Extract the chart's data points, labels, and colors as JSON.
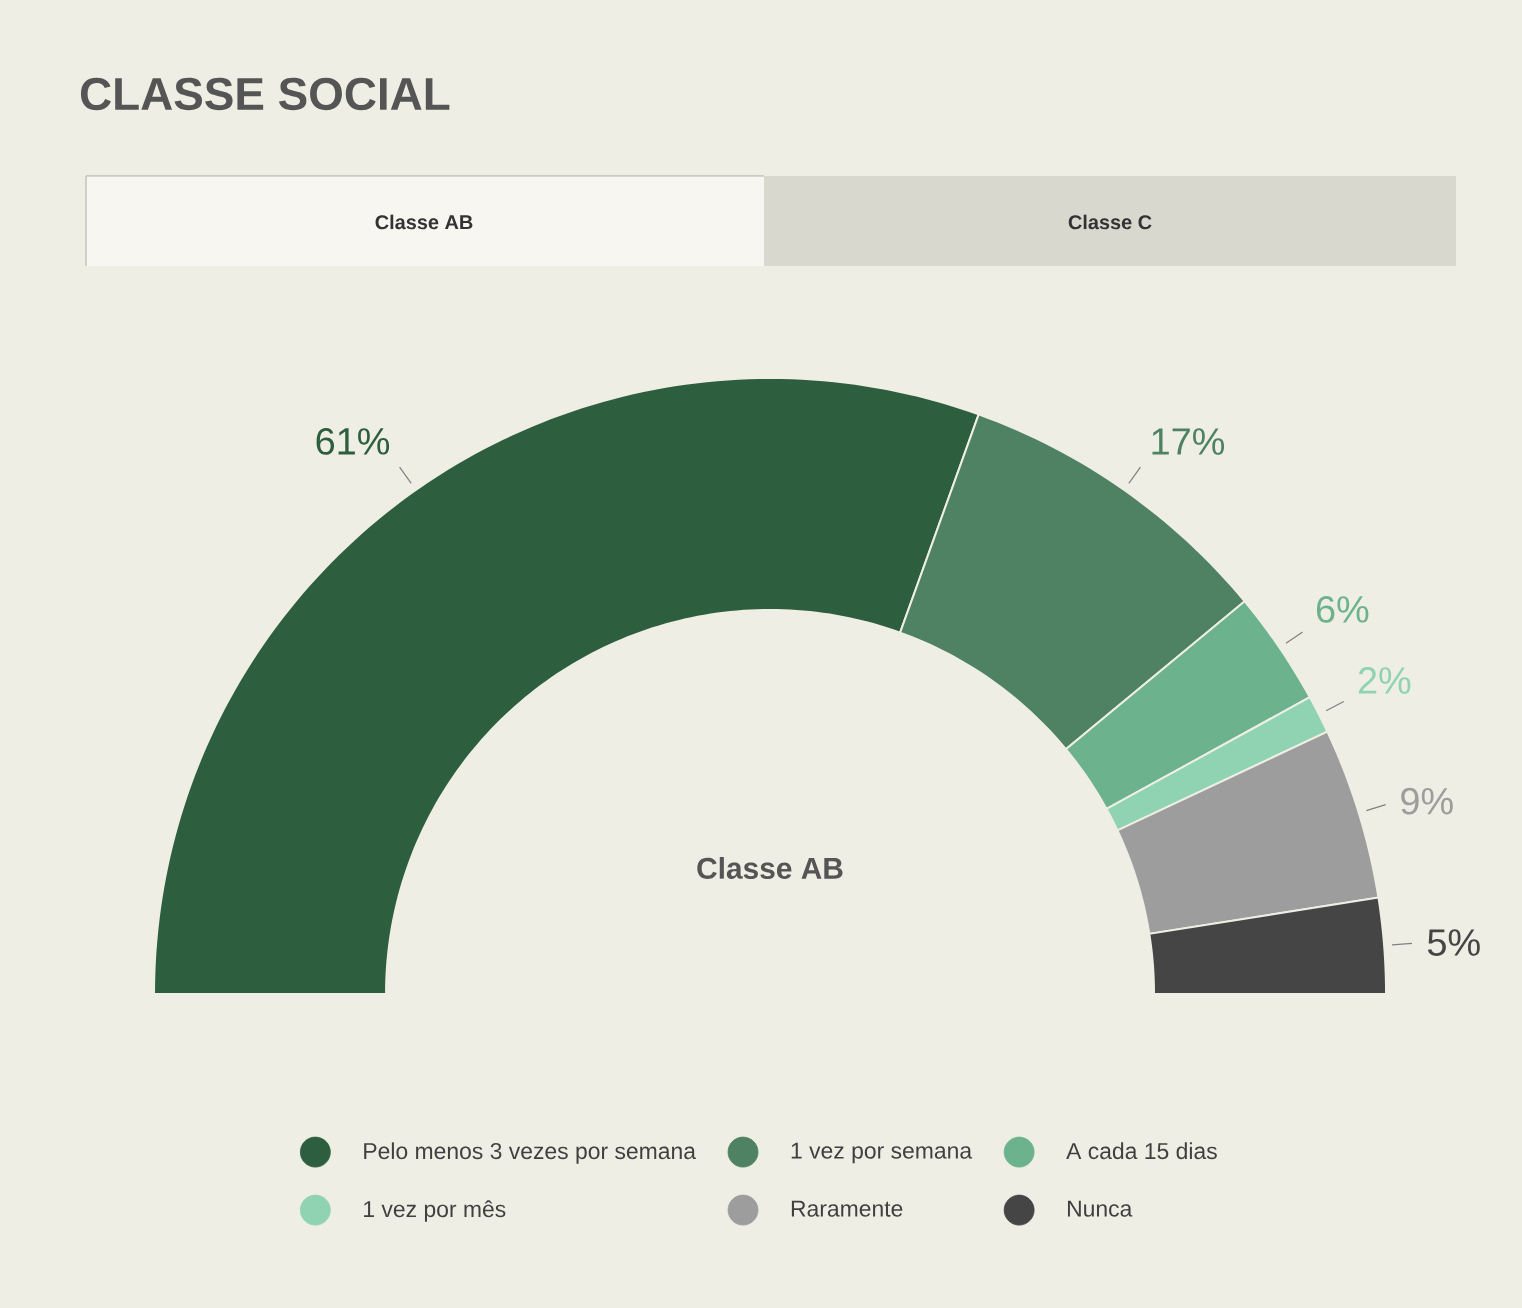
{
  "chart_data": {
    "type": "donut",
    "title": "CLASSE SOCIAL",
    "annotations": [
      "Classe AB",
      "Classe C",
      "Classe AB"
    ],
    "categories": [
      "Pelo menos 3 vezes por semana",
      "1 vez por semana",
      "A cada 15 dias",
      "1 vez por mês",
      "Raramente",
      "Nunca"
    ],
    "values": [
      61,
      17,
      6,
      2,
      9,
      5
    ],
    "value_labels": [
      "61%",
      "17%",
      "6%",
      "2%",
      "9%",
      "5%"
    ],
    "colors": [
      "#2d5e3e",
      "#4e8262",
      "#6cb38d",
      "#8fd3b2",
      "#9d9d9d",
      "#454545"
    ],
    "legend": "bottom"
  }
}
